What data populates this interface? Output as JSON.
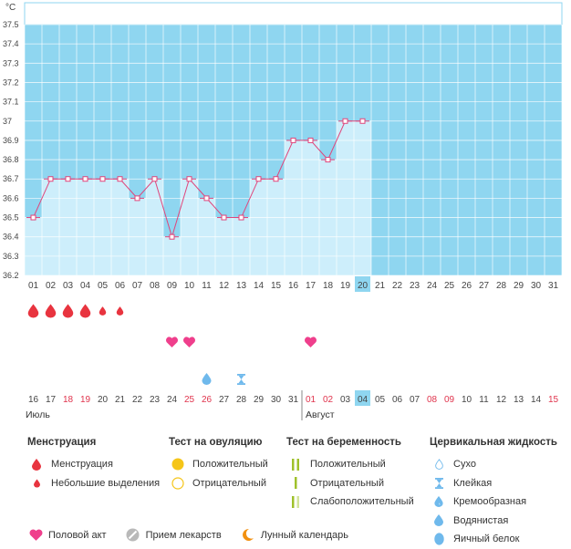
{
  "chart_data": {
    "type": "line",
    "unit": "°C",
    "ylim": [
      36.2,
      37.5
    ],
    "yticks": [
      "37.5",
      "37.4",
      "37.3",
      "37.2",
      "37.1",
      "37",
      "36.9",
      "36.8",
      "36.7",
      "36.6",
      "36.5",
      "36.4",
      "36.3",
      "36.2"
    ],
    "days_top": [
      "01",
      "02",
      "03",
      "04",
      "05",
      "06",
      "07",
      "08",
      "09",
      "10",
      "11",
      "12",
      "13",
      "14",
      "15",
      "16",
      "17",
      "18",
      "19",
      "20",
      "21",
      "22",
      "23",
      "24",
      "25",
      "26",
      "27",
      "28",
      "29",
      "30",
      "31"
    ],
    "current_day_index": 19,
    "temperatures": [
      36.5,
      36.7,
      36.7,
      36.7,
      36.7,
      36.7,
      36.6,
      36.7,
      36.4,
      36.7,
      36.6,
      36.5,
      36.5,
      36.7,
      36.7,
      36.9,
      36.9,
      36.8,
      37.0,
      37.0
    ],
    "menstruation": [
      "big",
      "big",
      "big",
      "big",
      "small",
      "small"
    ],
    "intercourse_days": [
      8,
      9,
      16
    ],
    "cervical_fluid": [
      {
        "day": 10,
        "kind": "watery"
      },
      {
        "day": 12,
        "kind": "sticky"
      }
    ],
    "dates_bottom": [
      "16",
      "17",
      "18",
      "19",
      "20",
      "21",
      "22",
      "23",
      "24",
      "25",
      "26",
      "27",
      "28",
      "29",
      "30",
      "31",
      "01",
      "02",
      "03",
      "04",
      "05",
      "06",
      "07",
      "08",
      "09",
      "10",
      "11",
      "12",
      "13",
      "14",
      "15"
    ],
    "dates_bottom_red": [
      2,
      3,
      9,
      10,
      16,
      17,
      23,
      24,
      30
    ],
    "month_left": "Июль",
    "month_right": "Август",
    "month_split_index": 16
  },
  "legend": {
    "menstruation": {
      "title": "Менструация",
      "items": [
        "Менструация",
        "Небольшие выделения"
      ]
    },
    "ovulation": {
      "title": "Тест на овуляцию",
      "items": [
        "Положительный",
        "Отрицательный"
      ]
    },
    "pregnancy": {
      "title": "Тест на беременность",
      "items": [
        "Положительный",
        "Отрицательный",
        "Слабоположительный"
      ]
    },
    "cervical": {
      "title": "Цервикальная жидкость",
      "items": [
        "Сухо",
        "Клейкая",
        "Кремообразная",
        "Водянистая",
        "Яичный белок"
      ]
    },
    "bottom": [
      "Половой акт",
      "Прием лекарств",
      "Лунный календарь"
    ]
  },
  "colors": {
    "sky": "#8fd6f0",
    "column": "#cdeefb",
    "line": "#e0457b",
    "red": "#e8343f",
    "pink": "#ef3f8c",
    "current": "#8fd6f0",
    "yellow": "#f5c518",
    "green": "#9fc12b",
    "orange": "#f29111",
    "drop_blue": "#6fb9ec"
  }
}
